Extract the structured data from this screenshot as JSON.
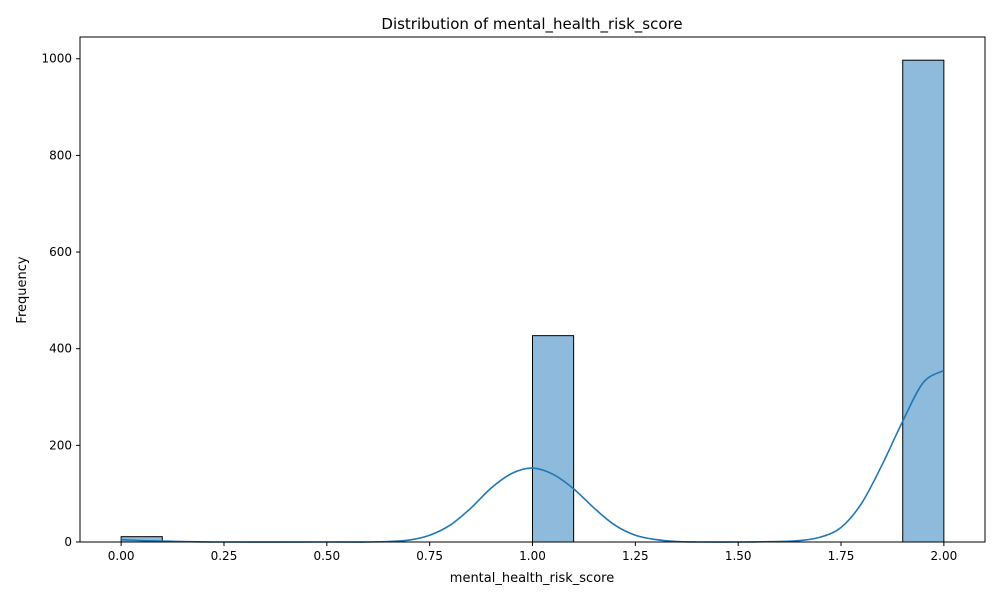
{
  "chart_data": {
    "type": "histogram",
    "title": "Distribution of mental_health_risk_score",
    "xlabel": "mental_health_risk_score",
    "ylabel": "Frequency",
    "xlim": [
      -0.1,
      2.1
    ],
    "ylim": [
      0,
      1045
    ],
    "xticks": [
      "0.00",
      "0.25",
      "0.50",
      "0.75",
      "1.00",
      "1.25",
      "1.50",
      "1.75",
      "2.00"
    ],
    "yticks": [
      "0",
      "200",
      "400",
      "600",
      "800",
      "1000"
    ],
    "bins": [
      {
        "x0": 0.0,
        "x1": 0.1,
        "count": 11
      },
      {
        "x0": 1.0,
        "x1": 1.1,
        "count": 427
      },
      {
        "x0": 1.9,
        "x1": 2.0,
        "count": 997
      }
    ],
    "kde": {
      "x": [
        0.0,
        0.05,
        0.1,
        0.15,
        0.25,
        0.5,
        0.6,
        0.65,
        0.7,
        0.75,
        0.8,
        0.85,
        0.9,
        0.95,
        1.0,
        1.05,
        1.1,
        1.15,
        1.2,
        1.25,
        1.3,
        1.35,
        1.4,
        1.5,
        1.6,
        1.65,
        1.7,
        1.75,
        1.8,
        1.85,
        1.9,
        1.95,
        2.0
      ],
      "y": [
        5,
        3,
        2,
        1,
        0,
        0,
        0,
        1,
        4,
        14,
        35,
        70,
        112,
        142,
        153,
        140,
        110,
        70,
        35,
        14,
        5,
        1,
        0,
        0,
        1,
        3,
        10,
        30,
        80,
        160,
        250,
        330,
        355
      ]
    },
    "colors": {
      "bar_fill": "#8ebbdb",
      "bar_edge": "#000000",
      "kde_line": "#1f77b4"
    },
    "grid": false,
    "legend": "none"
  }
}
